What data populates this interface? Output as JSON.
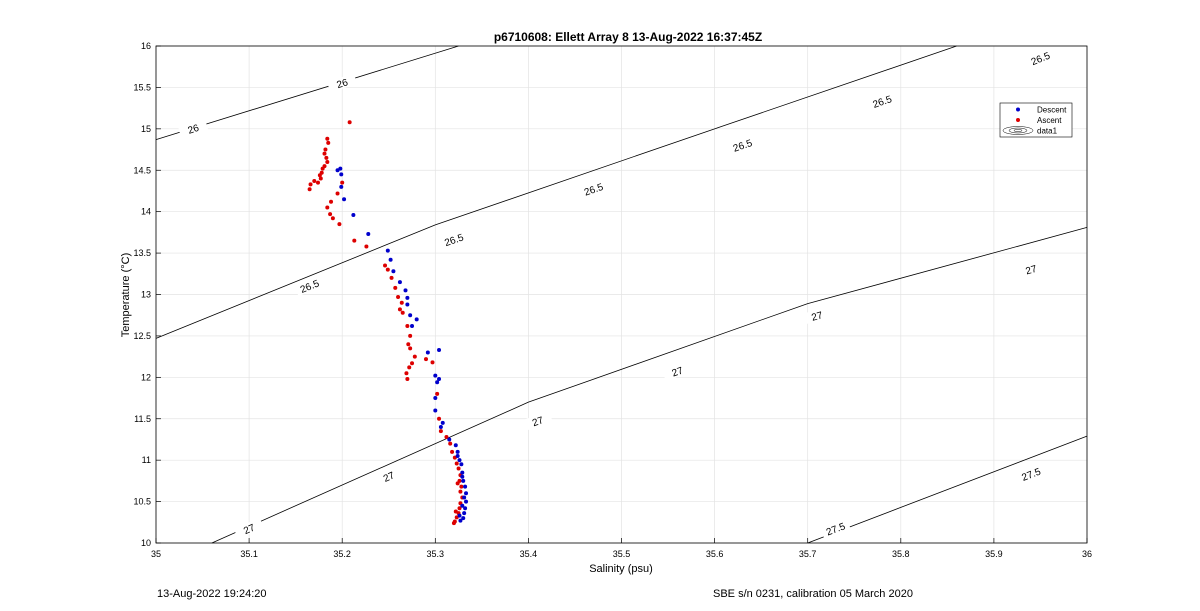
{
  "chart_data": {
    "type": "scatter",
    "title": "p6710608: Ellett Array 8 13-Aug-2022 16:37:45Z",
    "xlabel": "Salinity (psu)",
    "ylabel": "Temperature (°C)",
    "xlim": [
      35,
      36
    ],
    "ylim": [
      10,
      16
    ],
    "xticks": [
      35,
      35.1,
      35.2,
      35.3,
      35.4,
      35.5,
      35.6,
      35.7,
      35.8,
      35.9,
      36
    ],
    "xtick_labels": [
      "35",
      "35.1",
      "35.2",
      "35.3",
      "35.4",
      "35.5",
      "35.6",
      "35.7",
      "35.8",
      "35.9",
      "36"
    ],
    "yticks": [
      10,
      10.5,
      11,
      11.5,
      12,
      12.5,
      13,
      13.5,
      14,
      14.5,
      15,
      15.5,
      16
    ],
    "ytick_labels": [
      "10",
      "10.5",
      "11",
      "11.5",
      "12",
      "12.5",
      "13",
      "13.5",
      "14",
      "14.5",
      "15",
      "15.5",
      "16"
    ],
    "grid": true,
    "legend": {
      "position": "top-right",
      "entries": [
        "Descent",
        "Ascent",
        "data1"
      ]
    },
    "series": [
      {
        "name": "Descent",
        "color": "#0000cc",
        "points": [
          [
            35.195,
            14.5
          ],
          [
            35.198,
            14.52
          ],
          [
            35.199,
            14.45
          ],
          [
            35.199,
            14.3
          ],
          [
            35.202,
            14.15
          ],
          [
            35.212,
            13.96
          ],
          [
            35.228,
            13.73
          ],
          [
            35.249,
            13.53
          ],
          [
            35.252,
            13.42
          ],
          [
            35.255,
            13.28
          ],
          [
            35.262,
            13.15
          ],
          [
            35.268,
            13.05
          ],
          [
            35.27,
            12.96
          ],
          [
            35.27,
            12.88
          ],
          [
            35.273,
            12.75
          ],
          [
            35.275,
            12.62
          ],
          [
            35.28,
            12.7
          ],
          [
            35.292,
            12.3
          ],
          [
            35.3,
            12.02
          ],
          [
            35.304,
            11.98
          ],
          [
            35.302,
            11.94
          ],
          [
            35.304,
            12.33
          ],
          [
            35.3,
            11.75
          ],
          [
            35.3,
            11.6
          ],
          [
            35.308,
            11.45
          ],
          [
            35.306,
            11.4
          ],
          [
            35.315,
            11.25
          ],
          [
            35.322,
            11.18
          ],
          [
            35.324,
            11.1
          ],
          [
            35.324,
            11.05
          ],
          [
            35.326,
            11.0
          ],
          [
            35.328,
            10.95
          ],
          [
            35.329,
            10.85
          ],
          [
            35.33,
            10.75
          ],
          [
            35.332,
            10.68
          ],
          [
            35.333,
            10.6
          ],
          [
            35.333,
            10.5
          ],
          [
            35.332,
            10.42
          ],
          [
            35.331,
            10.36
          ],
          [
            35.33,
            10.3
          ],
          [
            35.327,
            10.27
          ],
          [
            35.326,
            10.33
          ],
          [
            35.329,
            10.45
          ],
          [
            35.331,
            10.55
          ],
          [
            35.329,
            10.8
          ]
        ]
      },
      {
        "name": "Ascent",
        "color": "#dd0000",
        "points": [
          [
            35.208,
            15.08
          ],
          [
            35.184,
            14.88
          ],
          [
            35.185,
            14.83
          ],
          [
            35.182,
            14.75
          ],
          [
            35.181,
            14.7
          ],
          [
            35.183,
            14.65
          ],
          [
            35.184,
            14.6
          ],
          [
            35.181,
            14.55
          ],
          [
            35.179,
            14.52
          ],
          [
            35.178,
            14.47
          ],
          [
            35.176,
            14.44
          ],
          [
            35.177,
            14.4
          ],
          [
            35.174,
            14.35
          ],
          [
            35.17,
            14.37
          ],
          [
            35.166,
            14.33
          ],
          [
            35.165,
            14.27
          ],
          [
            35.2,
            14.35
          ],
          [
            35.195,
            14.22
          ],
          [
            35.188,
            14.12
          ],
          [
            35.184,
            14.05
          ],
          [
            35.187,
            13.97
          ],
          [
            35.19,
            13.92
          ],
          [
            35.197,
            13.85
          ],
          [
            35.213,
            13.65
          ],
          [
            35.226,
            13.58
          ],
          [
            35.246,
            13.35
          ],
          [
            35.249,
            13.3
          ],
          [
            35.253,
            13.2
          ],
          [
            35.257,
            13.08
          ],
          [
            35.26,
            12.97
          ],
          [
            35.264,
            12.9
          ],
          [
            35.262,
            12.82
          ],
          [
            35.265,
            12.78
          ],
          [
            35.27,
            12.62
          ],
          [
            35.273,
            12.5
          ],
          [
            35.271,
            12.4
          ],
          [
            35.273,
            12.35
          ],
          [
            35.278,
            12.25
          ],
          [
            35.275,
            12.17
          ],
          [
            35.272,
            12.12
          ],
          [
            35.269,
            12.05
          ],
          [
            35.27,
            11.98
          ],
          [
            35.29,
            12.22
          ],
          [
            35.297,
            12.18
          ],
          [
            35.302,
            11.8
          ],
          [
            35.304,
            11.5
          ],
          [
            35.306,
            11.35
          ],
          [
            35.312,
            11.28
          ],
          [
            35.316,
            11.2
          ],
          [
            35.318,
            11.1
          ],
          [
            35.321,
            11.03
          ],
          [
            35.323,
            10.96
          ],
          [
            35.325,
            10.9
          ],
          [
            35.327,
            10.82
          ],
          [
            35.326,
            10.75
          ],
          [
            35.328,
            10.68
          ],
          [
            35.327,
            10.62
          ],
          [
            35.329,
            10.55
          ],
          [
            35.327,
            10.48
          ],
          [
            35.326,
            10.42
          ],
          [
            35.325,
            10.36
          ],
          [
            35.323,
            10.31
          ],
          [
            35.321,
            10.26
          ],
          [
            35.32,
            10.24
          ],
          [
            35.322,
            10.38
          ],
          [
            35.324,
            10.72
          ]
        ]
      }
    ],
    "contours": [
      {
        "label": "26",
        "points": [
          [
            35.0,
            14.87
          ],
          [
            35.325,
            16.0
          ]
        ],
        "label_pos": [
          [
            35.04,
            15.0
          ],
          [
            35.2,
            15.55
          ]
        ]
      },
      {
        "label": "26.5",
        "points": [
          [
            35.0,
            12.47
          ],
          [
            35.3,
            13.84
          ],
          [
            35.6,
            15.0
          ],
          [
            35.86,
            16.0
          ]
        ],
        "label_pos": [
          [
            35.165,
            13.1
          ],
          [
            35.32,
            13.66
          ],
          [
            35.47,
            14.27
          ],
          [
            35.63,
            14.8
          ],
          [
            35.78,
            15.33
          ],
          [
            35.95,
            15.85
          ]
        ]
      },
      {
        "label": "27",
        "points": [
          [
            35.06,
            10.0
          ],
          [
            35.4,
            11.7
          ],
          [
            35.7,
            12.89
          ],
          [
            36.0,
            13.81
          ]
        ],
        "label_pos": [
          [
            35.1,
            10.17
          ],
          [
            35.25,
            10.8
          ],
          [
            35.41,
            11.47
          ],
          [
            35.56,
            12.07
          ],
          [
            35.71,
            12.74
          ],
          [
            35.94,
            13.3
          ]
        ]
      },
      {
        "label": "27.5",
        "points": [
          [
            35.7,
            10.0
          ],
          [
            36.0,
            11.29
          ]
        ],
        "label_pos": [
          [
            35.73,
            10.17
          ],
          [
            35.94,
            10.83
          ]
        ]
      }
    ]
  },
  "footer": {
    "timestamp": "13-Aug-2022 19:24:20",
    "calibration": "SBE s/n 0231, calibration 05 March 2020"
  }
}
